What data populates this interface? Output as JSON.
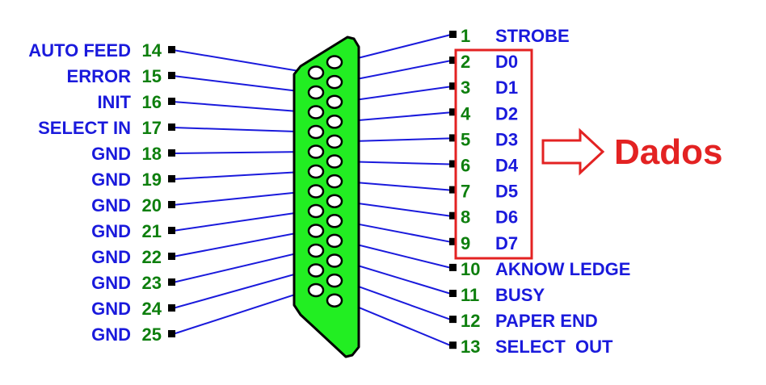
{
  "connector": {
    "left_pins": [
      {
        "number": "14",
        "name": "AUTO FEED"
      },
      {
        "number": "15",
        "name": "ERROR"
      },
      {
        "number": "16",
        "name": "INIT"
      },
      {
        "number": "17",
        "name": "SELECT IN"
      },
      {
        "number": "18",
        "name": "GND"
      },
      {
        "number": "19",
        "name": "GND"
      },
      {
        "number": "20",
        "name": "GND"
      },
      {
        "number": "21",
        "name": "GND"
      },
      {
        "number": "22",
        "name": "GND"
      },
      {
        "number": "23",
        "name": "GND"
      },
      {
        "number": "24",
        "name": "GND"
      },
      {
        "number": "25",
        "name": "GND"
      }
    ],
    "right_pins": [
      {
        "number": "1",
        "name": "STROBE"
      },
      {
        "number": "2",
        "name": "D0"
      },
      {
        "number": "3",
        "name": "D1"
      },
      {
        "number": "4",
        "name": "D2"
      },
      {
        "number": "5",
        "name": "D3"
      },
      {
        "number": "6",
        "name": "D4"
      },
      {
        "number": "7",
        "name": "D5"
      },
      {
        "number": "8",
        "name": "D6"
      },
      {
        "number": "9",
        "name": "D7"
      },
      {
        "number": "10",
        "name": "AKNOW LEDGE"
      },
      {
        "number": "11",
        "name": "BUSY"
      },
      {
        "number": "12",
        "name": "PAPER END"
      },
      {
        "number": "13",
        "name": "SELECT  OUT"
      }
    ]
  },
  "data_group": {
    "label": "Dados",
    "highlight_color": "#e32222"
  },
  "colors": {
    "name_text": "#1a1adc",
    "number_text": "#0e7f0e",
    "connector_fill": "#22ee22",
    "wire": "#1a1adc"
  }
}
